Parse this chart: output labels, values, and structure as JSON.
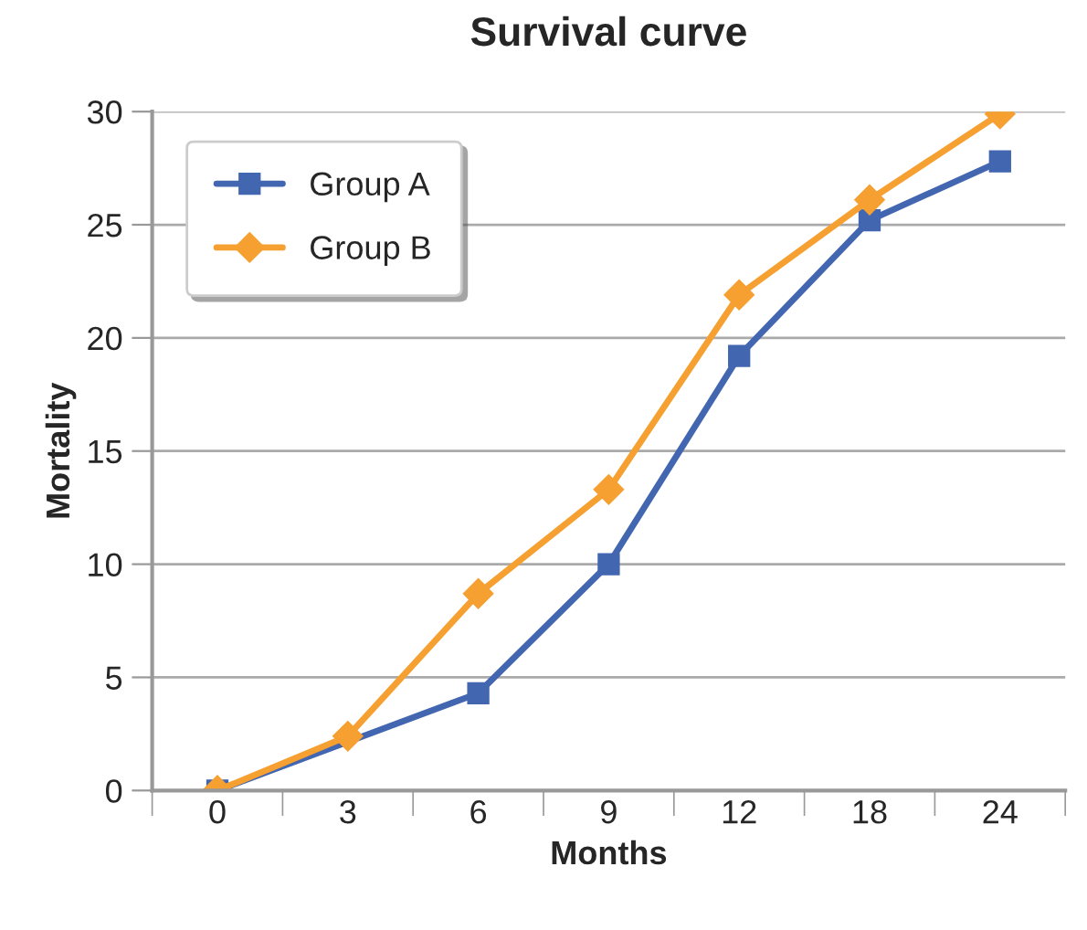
{
  "chart_data": {
    "type": "line",
    "title": "Survival curve",
    "xlabel": "Months",
    "ylabel": "Mortality",
    "categories": [
      "0",
      "3",
      "6",
      "9",
      "12",
      "18",
      "24"
    ],
    "ylim": [
      0,
      30
    ],
    "yticks": [
      0,
      5,
      10,
      15,
      20,
      25,
      30
    ],
    "grid": "y",
    "legend": "top left",
    "series": [
      {
        "name": "Group A",
        "color": "#4266b0",
        "marker": "square",
        "values": [
          0,
          null,
          4.3,
          10.0,
          19.2,
          25.2,
          27.8
        ]
      },
      {
        "name": "Group B",
        "color": "#f5a031",
        "marker": "diamond",
        "values": [
          0,
          2.4,
          8.7,
          13.3,
          21.9,
          26.1,
          29.9
        ]
      }
    ]
  }
}
